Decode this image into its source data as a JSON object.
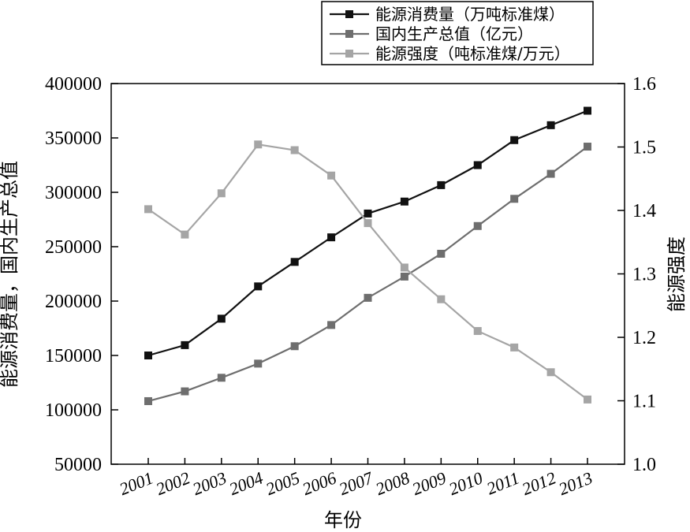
{
  "chart_data": {
    "type": "line",
    "x": [
      "2001",
      "2002",
      "2003",
      "2004",
      "2005",
      "2006",
      "2007",
      "2008",
      "2009",
      "2010",
      "2011",
      "2012",
      "2013"
    ],
    "xlabel": "年份",
    "ylabel_left": "能源消费量，国内生产总值",
    "ylabel_right": "能源强度",
    "ylim_left": [
      50000,
      400000
    ],
    "ylim_right": [
      1.0,
      1.6
    ],
    "yticks_left": [
      "50000",
      "100000",
      "150000",
      "200000",
      "250000",
      "300000",
      "350000",
      "400000"
    ],
    "yticks_right": [
      "1.0",
      "1.1",
      "1.2",
      "1.3",
      "1.4",
      "1.5",
      "1.6"
    ],
    "legend_position": "top-right",
    "grid": false,
    "series": [
      {
        "name": "能源消费量（万吨标准煤）",
        "axis": "left",
        "color": "#111111",
        "values": [
          150000,
          159500,
          183800,
          213500,
          236000,
          258600,
          280500,
          291500,
          306600,
          325000,
          348000,
          361700,
          375000
        ]
      },
      {
        "name": "国内生产总值（亿元）",
        "axis": "left",
        "color": "#6e6e6e",
        "values": [
          108000,
          117000,
          129500,
          142500,
          158500,
          178000,
          203000,
          222500,
          243500,
          269000,
          294000,
          317000,
          342000
        ]
      },
      {
        "name": "能源强度（吨标准煤/万元）",
        "axis": "right",
        "color": "#a5a5a5",
        "values": [
          1.402,
          1.362,
          1.427,
          1.504,
          1.495,
          1.455,
          1.38,
          1.31,
          1.26,
          1.21,
          1.184,
          1.145,
          1.102
        ]
      }
    ]
  }
}
